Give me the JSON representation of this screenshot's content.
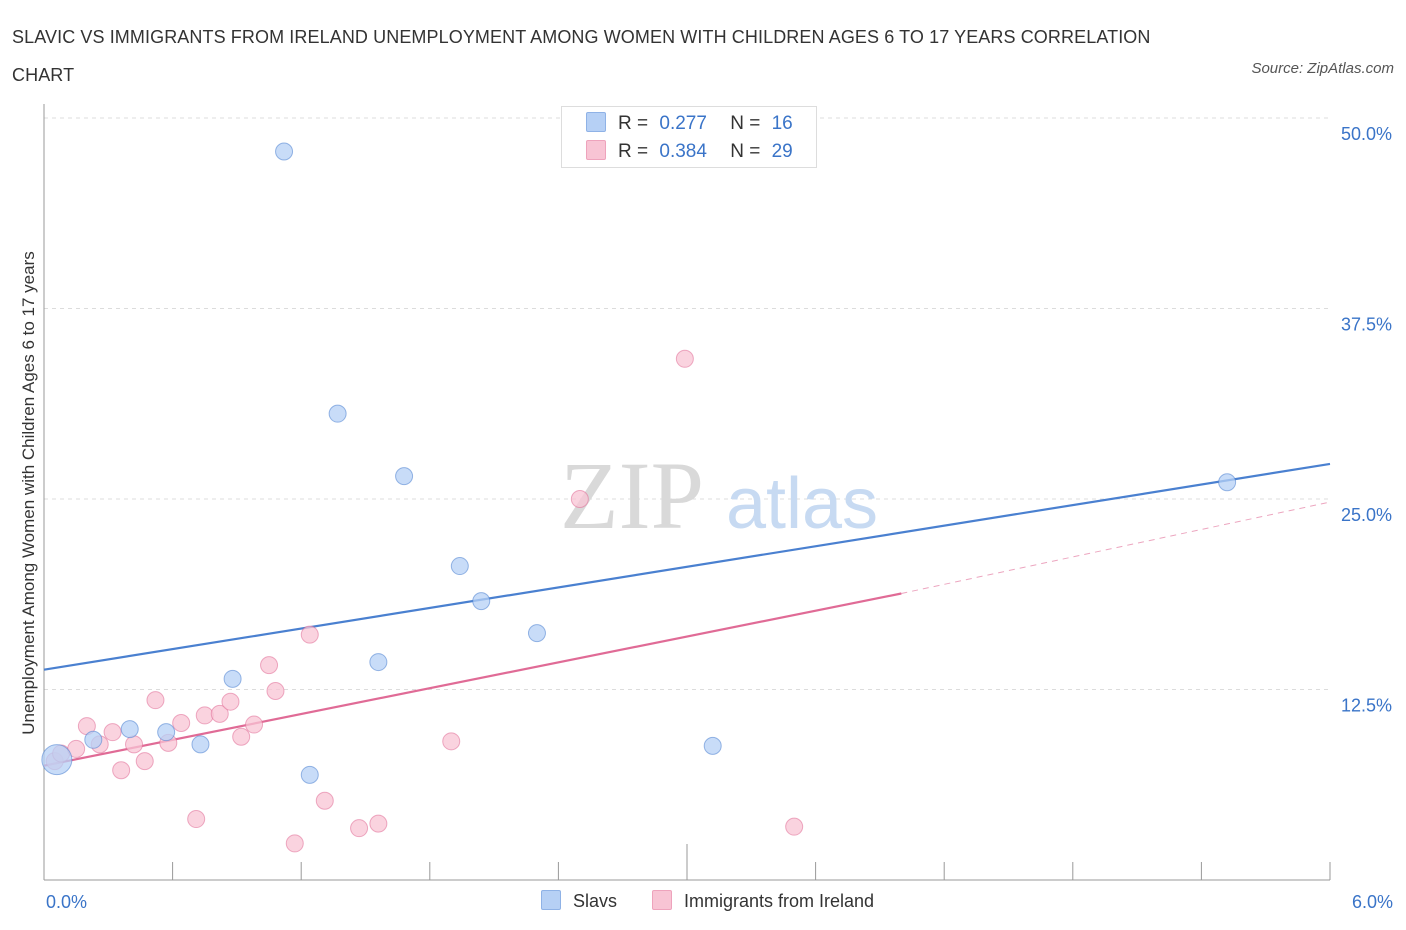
{
  "title": "SLAVIC VS IMMIGRANTS FROM IRELAND UNEMPLOYMENT AMONG WOMEN WITH CHILDREN AGES 6 TO 17 YEARS CORRELATION CHART",
  "source": "Source: ZipAtlas.com",
  "watermark": {
    "zip": "ZIP",
    "atlas": "atlas"
  },
  "legend": {
    "rows": [
      {
        "r_label": "R =",
        "r_value": "0.277",
        "n_label": "N =",
        "n_value": "16",
        "color": "#b6d0f5"
      },
      {
        "r_label": "R =",
        "r_value": "0.384",
        "n_label": "N =",
        "n_value": "29",
        "color": "#f8c4d4"
      }
    ]
  },
  "bottom_legend": {
    "slavs": "Slavs",
    "ireland": "Immigrants from Ireland"
  },
  "chart_data": {
    "type": "scatter",
    "ylabel": "Unemployment Among Women with Children Ages 6 to 17 years",
    "xlabel": "",
    "xlim": [
      0,
      6
    ],
    "ylim": [
      0,
      50
    ],
    "x_tick_labels": [
      {
        "value": 0,
        "label": "0.0%"
      },
      {
        "value": 6,
        "label": "6.0%"
      }
    ],
    "y_tick_labels": [
      {
        "value": 12.5,
        "label": "12.5%"
      },
      {
        "value": 25,
        "label": "25.0%"
      },
      {
        "value": 37.5,
        "label": "37.5%"
      },
      {
        "value": 50,
        "label": "50.0%"
      }
    ],
    "grid": true,
    "legend_position": "top-center",
    "series": [
      {
        "name": "Slavs",
        "color": "#4a80d0",
        "fill": "#b6d0f5",
        "trend": {
          "x": [
            0,
            6
          ],
          "y": [
            13.8,
            27.3
          ],
          "dashed_x": []
        },
        "points": [
          {
            "x": 0.06,
            "y": 7.9,
            "big": true
          },
          {
            "x": 0.23,
            "y": 9.2
          },
          {
            "x": 0.4,
            "y": 9.9
          },
          {
            "x": 0.57,
            "y": 9.7
          },
          {
            "x": 0.73,
            "y": 8.9
          },
          {
            "x": 0.88,
            "y": 13.2
          },
          {
            "x": 1.12,
            "y": 47.8
          },
          {
            "x": 1.24,
            "y": 6.9
          },
          {
            "x": 1.37,
            "y": 30.6
          },
          {
            "x": 1.56,
            "y": 14.3
          },
          {
            "x": 1.68,
            "y": 26.5
          },
          {
            "x": 1.94,
            "y": 20.6
          },
          {
            "x": 2.04,
            "y": 18.3
          },
          {
            "x": 2.3,
            "y": 16.2
          },
          {
            "x": 3.12,
            "y": 8.8
          },
          {
            "x": 5.52,
            "y": 26.1
          }
        ]
      },
      {
        "name": "Immigrants from Ireland",
        "color": "#e06b96",
        "fill": "#f8c4d4",
        "trend": {
          "x": [
            0,
            4.0
          ],
          "y": [
            7.5,
            18.8
          ],
          "dashed_x": [
            4.0,
            6
          ],
          "dashed_y": [
            18.8,
            24.8
          ]
        },
        "points": [
          {
            "x": 0.05,
            "y": 7.8
          },
          {
            "x": 0.08,
            "y": 8.3
          },
          {
            "x": 0.15,
            "y": 8.6
          },
          {
            "x": 0.2,
            "y": 10.1
          },
          {
            "x": 0.26,
            "y": 8.9
          },
          {
            "x": 0.32,
            "y": 9.7
          },
          {
            "x": 0.36,
            "y": 7.2
          },
          {
            "x": 0.42,
            "y": 8.9
          },
          {
            "x": 0.47,
            "y": 7.8
          },
          {
            "x": 0.52,
            "y": 11.8
          },
          {
            "x": 0.58,
            "y": 9.0
          },
          {
            "x": 0.64,
            "y": 10.3
          },
          {
            "x": 0.71,
            "y": 4.0
          },
          {
            "x": 0.75,
            "y": 10.8
          },
          {
            "x": 0.82,
            "y": 10.9
          },
          {
            "x": 0.87,
            "y": 11.7
          },
          {
            "x": 0.92,
            "y": 9.4
          },
          {
            "x": 0.98,
            "y": 10.2
          },
          {
            "x": 1.05,
            "y": 14.1
          },
          {
            "x": 1.08,
            "y": 12.4
          },
          {
            "x": 1.17,
            "y": 2.4
          },
          {
            "x": 1.24,
            "y": 16.1
          },
          {
            "x": 1.31,
            "y": 5.2
          },
          {
            "x": 1.47,
            "y": 3.4
          },
          {
            "x": 1.56,
            "y": 3.7
          },
          {
            "x": 1.9,
            "y": 9.1
          },
          {
            "x": 2.5,
            "y": 25.0
          },
          {
            "x": 2.99,
            "y": 34.2
          },
          {
            "x": 3.5,
            "y": 3.5
          }
        ]
      }
    ]
  }
}
